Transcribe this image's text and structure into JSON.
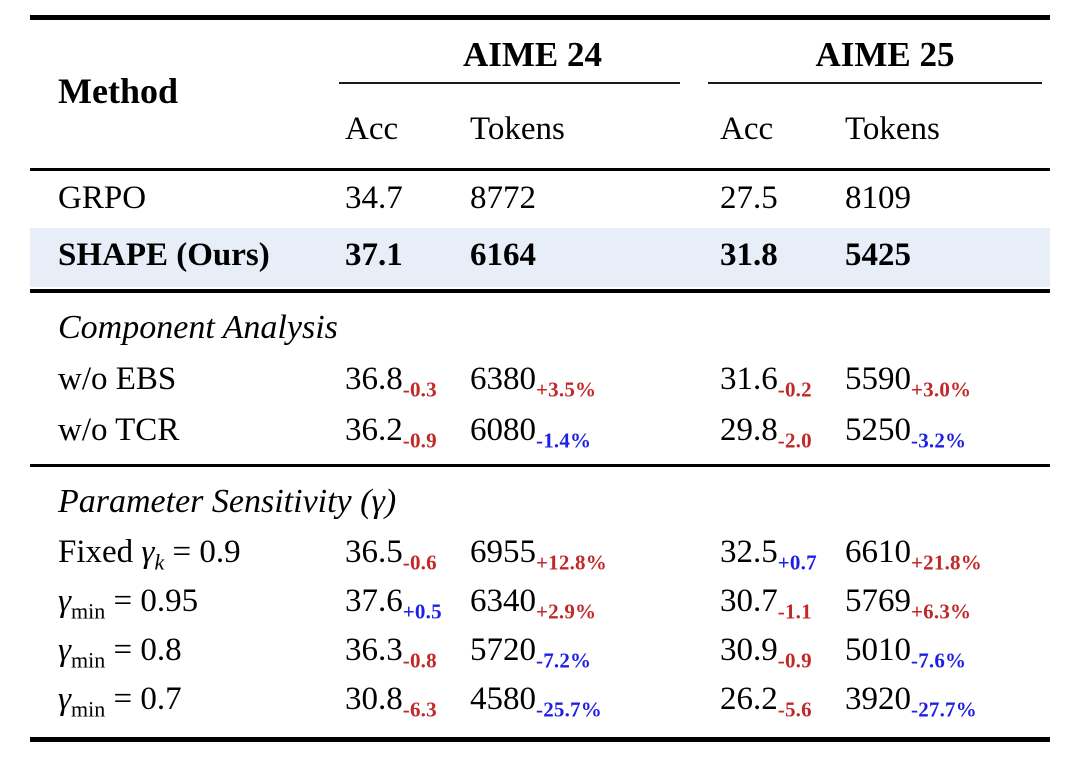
{
  "colors": {
    "red": "#c22828",
    "blue": "#1e1ee6",
    "highlight_row_bg": "#e8eef8",
    "rule": "#000000"
  },
  "table": {
    "header": {
      "method_label": "Method",
      "groups": [
        {
          "label": "AIME 24",
          "columns": [
            "Acc",
            "Tokens"
          ]
        },
        {
          "label": "AIME 25",
          "columns": [
            "Acc",
            "Tokens"
          ]
        }
      ]
    },
    "baseline_rows": [
      {
        "bold": false,
        "highlight": false,
        "label_parts": [
          {
            "text": "GRPO"
          }
        ],
        "cells": [
          {
            "v": "34.7"
          },
          {
            "v": "8772"
          },
          {
            "v": "27.5"
          },
          {
            "v": "8109"
          }
        ]
      },
      {
        "bold": true,
        "highlight": true,
        "label_parts": [
          {
            "text": "SHAPE (Ours)"
          }
        ],
        "cells": [
          {
            "v": "37.1"
          },
          {
            "v": "6164"
          },
          {
            "v": "31.8"
          },
          {
            "v": "5425"
          }
        ]
      }
    ],
    "sections": [
      {
        "title": "Component Analysis",
        "rows": [
          {
            "label_parts": [
              {
                "text": "w/o EBS"
              }
            ],
            "cells": [
              {
                "v": "36.8",
                "d": "-0.3",
                "c": "red"
              },
              {
                "v": "6380",
                "d": "+3.5%",
                "c": "red"
              },
              {
                "v": "31.6",
                "d": "-0.2",
                "c": "red"
              },
              {
                "v": "5590",
                "d": "+3.0%",
                "c": "red"
              }
            ]
          },
          {
            "label_parts": [
              {
                "text": "w/o TCR"
              }
            ],
            "cells": [
              {
                "v": "36.2",
                "d": "-0.9",
                "c": "red"
              },
              {
                "v": "6080",
                "d": "-1.4%",
                "c": "blue"
              },
              {
                "v": "29.8",
                "d": "-2.0",
                "c": "red"
              },
              {
                "v": "5250",
                "d": "-3.2%",
                "c": "blue"
              }
            ]
          }
        ]
      },
      {
        "title": "Parameter Sensitivity (γ)",
        "rows": [
          {
            "label_parts": [
              {
                "text": "Fixed "
              },
              {
                "text": "γ",
                "italic": true
              },
              {
                "sub": "k",
                "italic": true
              },
              {
                "text": " = 0.9"
              }
            ],
            "cells": [
              {
                "v": "36.5",
                "d": "-0.6",
                "c": "red"
              },
              {
                "v": "6955",
                "d": "+12.8%",
                "c": "red"
              },
              {
                "v": "32.5",
                "d": "+0.7",
                "c": "blue"
              },
              {
                "v": "6610",
                "d": "+21.8%",
                "c": "red"
              }
            ]
          },
          {
            "label_parts": [
              {
                "text": "γ",
                "italic": true
              },
              {
                "sub": "min"
              },
              {
                "text": " = 0.95"
              }
            ],
            "cells": [
              {
                "v": "37.6",
                "d": "+0.5",
                "c": "blue"
              },
              {
                "v": "6340",
                "d": "+2.9%",
                "c": "red"
              },
              {
                "v": "30.7",
                "d": "-1.1",
                "c": "red"
              },
              {
                "v": "5769",
                "d": "+6.3%",
                "c": "red"
              }
            ]
          },
          {
            "label_parts": [
              {
                "text": "γ",
                "italic": true
              },
              {
                "sub": "min"
              },
              {
                "text": " = 0.8"
              }
            ],
            "cells": [
              {
                "v": "36.3",
                "d": "-0.8",
                "c": "red"
              },
              {
                "v": "5720",
                "d": "-7.2%",
                "c": "blue"
              },
              {
                "v": "30.9",
                "d": "-0.9",
                "c": "red"
              },
              {
                "v": "5010",
                "d": "-7.6%",
                "c": "blue"
              }
            ]
          },
          {
            "label_parts": [
              {
                "text": "γ",
                "italic": true
              },
              {
                "sub": "min"
              },
              {
                "text": " = 0.7"
              }
            ],
            "cells": [
              {
                "v": "30.8",
                "d": "-6.3",
                "c": "red"
              },
              {
                "v": "4580",
                "d": "-25.7%",
                "c": "blue"
              },
              {
                "v": "26.2",
                "d": "-5.6",
                "c": "red"
              },
              {
                "v": "3920",
                "d": "-27.7%",
                "c": "blue"
              }
            ]
          }
        ]
      }
    ]
  }
}
